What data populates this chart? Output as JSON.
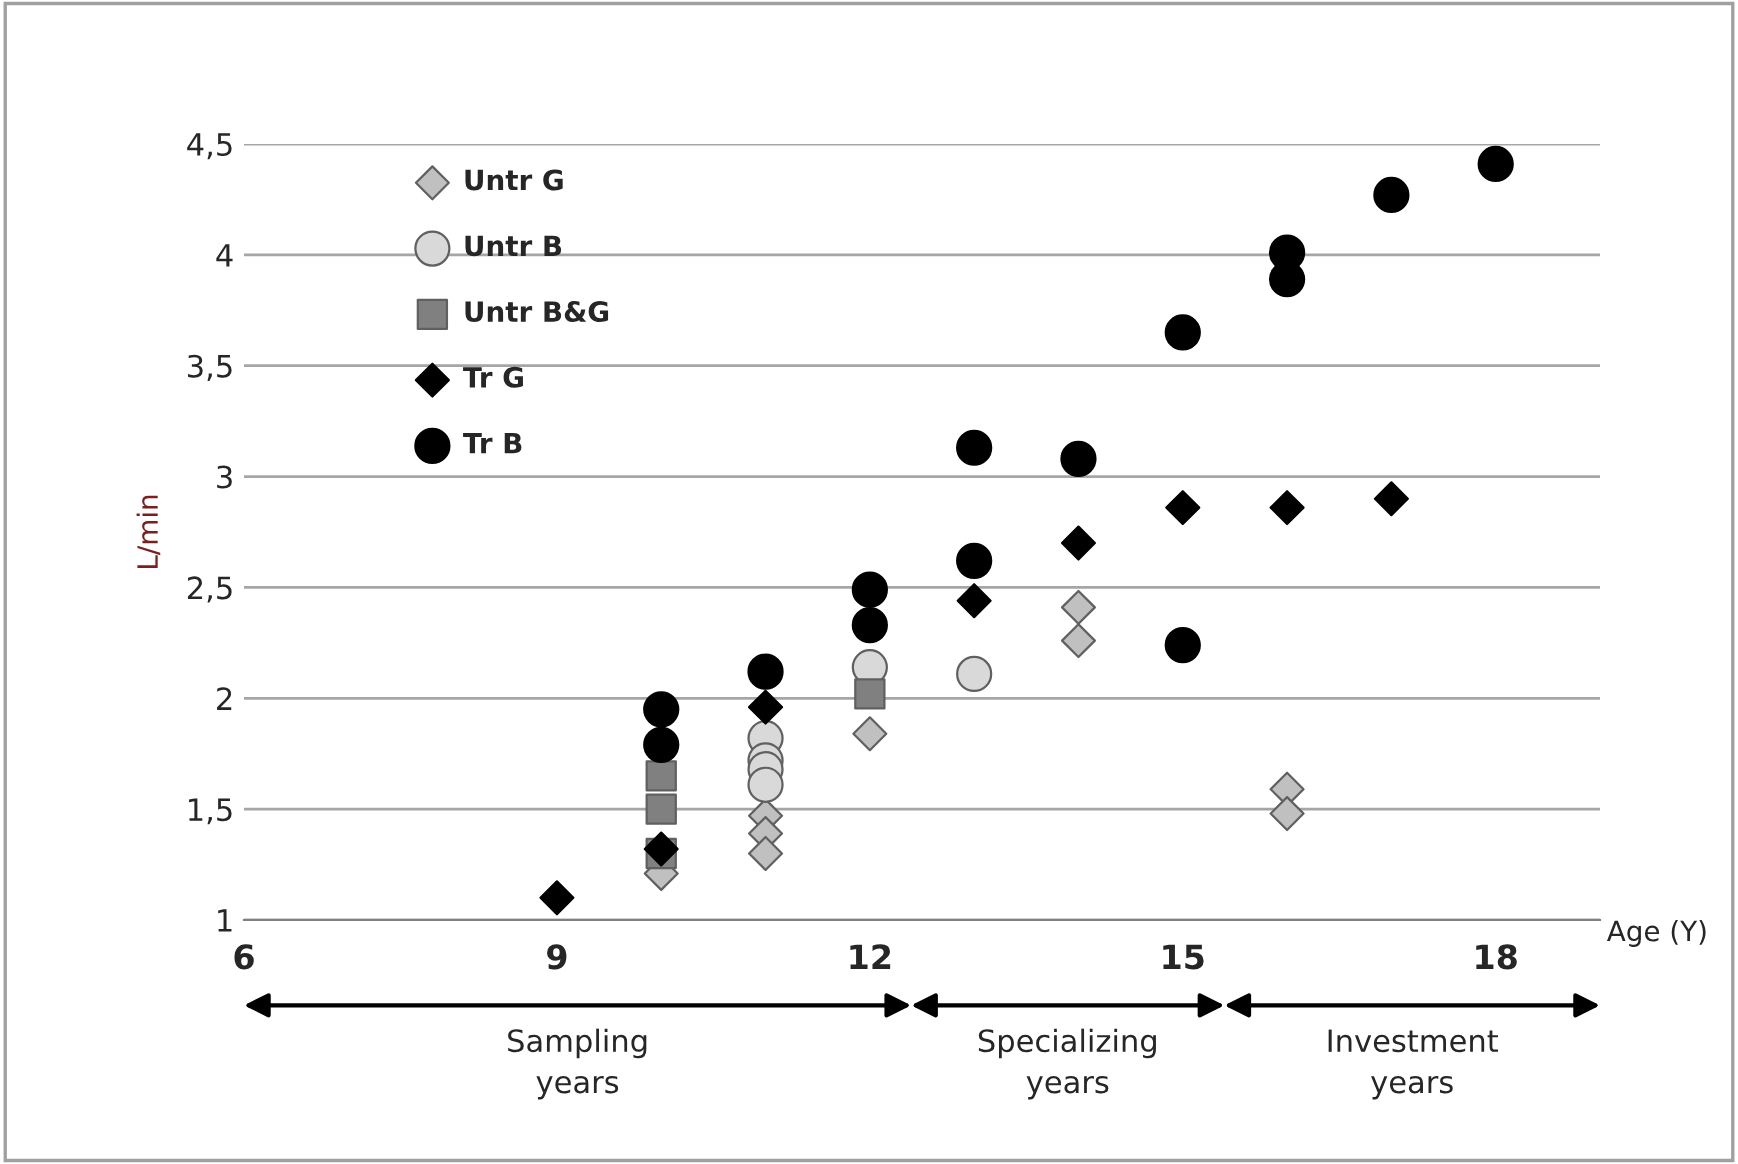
{
  "chart_data": {
    "type": "scatter",
    "xlabel": "Age (Y)",
    "ylabel": "L/min",
    "xlim": [
      6,
      19
    ],
    "ylim": [
      1,
      4.5
    ],
    "xticks": [
      6,
      9,
      12,
      15,
      18
    ],
    "yticks": [
      1,
      {
        "value": 1.5,
        "label": "1,5"
      },
      2,
      {
        "value": 2.5,
        "label": "2,5"
      },
      3,
      {
        "value": 3.5,
        "label": "3,5"
      },
      4,
      {
        "value": 4.5,
        "label": "4,5"
      }
    ],
    "grid": "y",
    "legend": "top left",
    "series": [
      {
        "name": "Untr G",
        "color": "#c0c0c0",
        "marker": "diamond",
        "x": [
          10,
          11,
          11,
          11,
          12,
          14,
          14,
          16,
          16
        ],
        "values": [
          1.21,
          1.47,
          1.39,
          1.3,
          1.84,
          2.41,
          2.26,
          1.59,
          1.48
        ]
      },
      {
        "name": "Untr B",
        "color": "#d9d9d9",
        "marker": "circle",
        "x": [
          11,
          11,
          11,
          11,
          12,
          13
        ],
        "values": [
          1.82,
          1.72,
          1.68,
          1.61,
          2.14,
          2.11
        ]
      },
      {
        "name": "Untr B&G",
        "color": "#808080",
        "marker": "square",
        "x": [
          10,
          10,
          10,
          12
        ],
        "values": [
          1.65,
          1.5,
          1.3,
          2.02
        ]
      },
      {
        "name": "Tr G",
        "color": "#000000",
        "marker": "diamond",
        "x": [
          9,
          10,
          11,
          13,
          14,
          15,
          16,
          17
        ],
        "values": [
          1.1,
          1.32,
          1.96,
          2.44,
          2.7,
          2.86,
          2.86,
          2.9
        ]
      },
      {
        "name": "Tr B",
        "color": "#000000",
        "marker": "circle",
        "x": [
          10,
          10,
          11,
          12,
          12,
          13,
          13,
          14,
          15,
          15,
          16,
          16,
          17,
          18
        ],
        "values": [
          1.95,
          1.79,
          2.12,
          2.49,
          2.33,
          3.13,
          2.62,
          3.08,
          2.24,
          3.65,
          4.01,
          3.89,
          4.27,
          4.41
        ]
      }
    ],
    "annotations": [
      "Sampling\nyears",
      "Specializing\nyears",
      "Investment\nyears"
    ]
  }
}
